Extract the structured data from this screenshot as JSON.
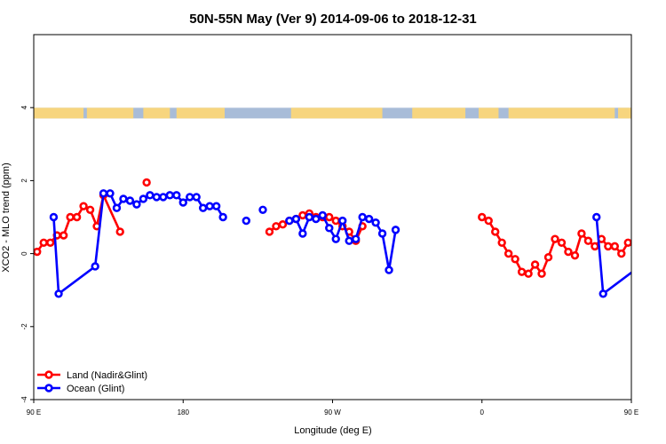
{
  "chart_data": {
    "type": "line",
    "title": "50N-55N May (Ver 9)   2014-09-06 to 2018-12-31",
    "xlabel": "Longitude (deg E)",
    "ylabel": "XCO2 - MLO trend (ppm)",
    "xlim": [
      90,
      450
    ],
    "ylim": [
      -4,
      6
    ],
    "x_ticks": [
      {
        "value": 90,
        "label": "90 E"
      },
      {
        "value": 180,
        "label": "180"
      },
      {
        "value": 270,
        "label": "90 W"
      },
      {
        "value": 360,
        "label": "0"
      },
      {
        "value": 450,
        "label": "90 E"
      },
      {
        "value": 540,
        "label": "180"
      }
    ],
    "y_ticks": [
      -4,
      -2,
      0,
      2,
      4
    ],
    "land_band_y": 3.85,
    "grid": false,
    "legend_position": "bottom-left",
    "series": [
      {
        "name": "Land (Nadir&Glint)",
        "color": "#ff0000",
        "points": [
          [
            92,
            0.05
          ],
          [
            96,
            0.3
          ],
          [
            100,
            0.3
          ],
          [
            104,
            0.5
          ],
          [
            108,
            0.5
          ],
          [
            112,
            1.0
          ],
          [
            116,
            1.0
          ],
          [
            120,
            1.3
          ],
          [
            124,
            1.2
          ],
          [
            128,
            0.75
          ],
          [
            132,
            1.6
          ],
          [
            142,
            0.6
          ],
          [
            null,
            null
          ],
          [
            158,
            1.95
          ],
          [
            null,
            null
          ],
          [
            232,
            0.6
          ],
          [
            236,
            0.75
          ],
          [
            240,
            0.8
          ],
          [
            244,
            0.9
          ],
          [
            248,
            0.95
          ],
          [
            252,
            1.05
          ],
          [
            256,
            1.1
          ],
          [
            260,
            1.0
          ],
          [
            264,
            1.0
          ],
          [
            268,
            1.0
          ],
          [
            272,
            0.9
          ],
          [
            276,
            0.75
          ],
          [
            280,
            0.6
          ],
          [
            284,
            0.35
          ],
          [
            288,
            0.75
          ],
          [
            null,
            null
          ],
          [
            360,
            1.0
          ],
          [
            364,
            0.9
          ],
          [
            368,
            0.6
          ],
          [
            372,
            0.3
          ],
          [
            376,
            0.0
          ],
          [
            380,
            -0.15
          ],
          [
            384,
            -0.5
          ],
          [
            388,
            -0.55
          ],
          [
            392,
            -0.3
          ],
          [
            396,
            -0.55
          ],
          [
            400,
            -0.1
          ],
          [
            404,
            0.4
          ],
          [
            408,
            0.3
          ],
          [
            412,
            0.05
          ],
          [
            416,
            -0.05
          ],
          [
            420,
            0.55
          ],
          [
            424,
            0.35
          ],
          [
            428,
            0.2
          ],
          [
            432,
            0.4
          ],
          [
            436,
            0.2
          ],
          [
            440,
            0.2
          ],
          [
            444,
            0.0
          ],
          [
            448,
            0.3
          ],
          [
            452,
            0.3
          ],
          [
            456,
            0.5
          ],
          [
            460,
            0.5
          ],
          [
            464,
            1.0
          ],
          [
            468,
            1.0
          ],
          [
            472,
            1.3
          ],
          [
            476,
            1.2
          ],
          [
            480,
            0.75
          ],
          [
            484,
            1.6
          ],
          [
            null,
            null
          ],
          [
            494,
            0.6
          ]
        ]
      },
      {
        "name": "Ocean (Glint)",
        "color": "#0000ff",
        "points": [
          [
            102,
            1.0
          ],
          [
            105,
            -1.1
          ],
          [
            127,
            -0.35
          ],
          [
            132,
            1.65
          ],
          [
            136,
            1.65
          ],
          [
            140,
            1.25
          ],
          [
            144,
            1.5
          ],
          [
            148,
            1.45
          ],
          [
            152,
            1.35
          ],
          [
            156,
            1.5
          ],
          [
            160,
            1.6
          ],
          [
            164,
            1.55
          ],
          [
            168,
            1.55
          ],
          [
            172,
            1.6
          ],
          [
            176,
            1.6
          ],
          [
            180,
            1.4
          ],
          [
            184,
            1.55
          ],
          [
            188,
            1.55
          ],
          [
            192,
            1.25
          ],
          [
            196,
            1.3
          ],
          [
            200,
            1.3
          ],
          [
            204,
            1.0
          ],
          [
            null,
            null
          ],
          [
            218,
            0.9
          ],
          [
            null,
            null
          ],
          [
            228,
            1.2
          ],
          [
            null,
            null
          ],
          [
            244,
            0.9
          ],
          [
            248,
            0.95
          ],
          [
            252,
            0.55
          ],
          [
            256,
            1.0
          ],
          [
            260,
            0.95
          ],
          [
            264,
            1.05
          ],
          [
            268,
            0.7
          ],
          [
            272,
            0.4
          ],
          [
            276,
            0.9
          ],
          [
            280,
            0.35
          ],
          [
            284,
            0.4
          ],
          [
            288,
            1.0
          ],
          [
            292,
            0.95
          ],
          [
            296,
            0.85
          ],
          [
            300,
            0.55
          ],
          [
            304,
            -0.45
          ],
          [
            308,
            0.65
          ],
          [
            null,
            null
          ],
          [
            429,
            1.0
          ],
          [
            433,
            -1.1
          ],
          [
            455,
            -0.35
          ],
          [
            459,
            1.65
          ],
          [
            463,
            1.65
          ],
          [
            467,
            1.25
          ],
          [
            471,
            1.5
          ],
          [
            475,
            1.45
          ],
          [
            479,
            1.35
          ],
          [
            483,
            1.5
          ],
          [
            487,
            1.6
          ]
        ]
      }
    ]
  }
}
